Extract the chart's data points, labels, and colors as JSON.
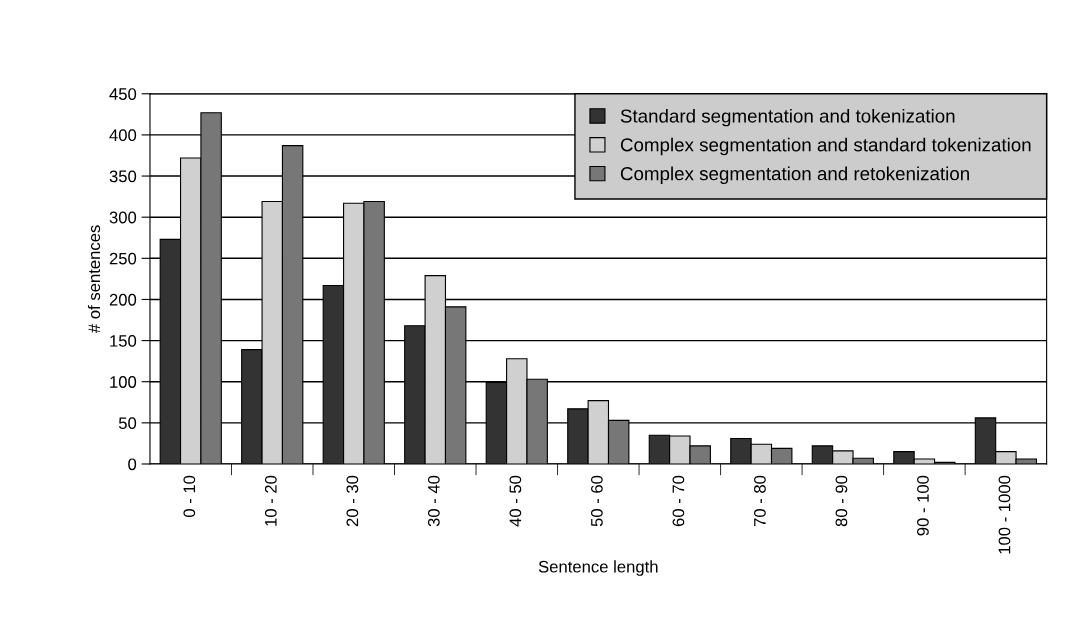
{
  "chart_data": {
    "type": "bar",
    "xlabel": "Sentence length",
    "ylabel": "# of sentences",
    "categories": [
      "0 - 10",
      "10 - 20",
      "20 - 30",
      "30 - 40",
      "40 - 50",
      "50 - 60",
      "60 - 70",
      "70 - 80",
      "80 - 90",
      "90 - 100",
      "100 - 1000"
    ],
    "series": [
      {
        "name": "Standard segmentation and tokenization",
        "color": "#333333",
        "values": [
          273,
          139,
          217,
          168,
          99,
          67,
          35,
          31,
          22,
          15,
          56
        ]
      },
      {
        "name": "Complex segmentation and standard tokenization",
        "color": "#d0d0d0",
        "values": [
          372,
          319,
          317,
          229,
          128,
          77,
          34,
          24,
          16,
          6,
          15
        ]
      },
      {
        "name": "Complex segmentation and retokenization",
        "color": "#777777",
        "values": [
          427,
          387,
          319,
          191,
          103,
          53,
          22,
          19,
          7,
          2,
          6
        ]
      }
    ],
    "ylim": [
      0,
      450
    ],
    "yticks": [
      0,
      50,
      100,
      150,
      200,
      250,
      300,
      350,
      400,
      450
    ],
    "grid": "y",
    "legend": "top right"
  }
}
